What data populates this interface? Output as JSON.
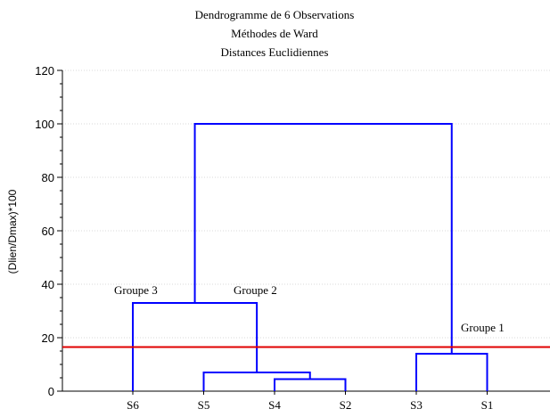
{
  "chart_data": {
    "type": "dendrogram",
    "title_lines": [
      "Dendrogramme de 6 Observations",
      "Méthodes de Ward",
      "Distances Euclidiennes"
    ],
    "xlabel": "",
    "ylabel": "(Dlien/Dmax)*100",
    "ylim": [
      0,
      120
    ],
    "yticks": [
      0,
      20,
      40,
      60,
      80,
      100,
      120
    ],
    "grid": true,
    "leaves": [
      "S6",
      "S5",
      "S4",
      "S2",
      "S3",
      "S1"
    ],
    "merges": [
      {
        "left": "S4",
        "right": "S2",
        "height": 4.5
      },
      {
        "left": "S5",
        "right": "S4+S2",
        "height": 7
      },
      {
        "left": "S6",
        "right": "S5+S4+S2",
        "height": 33
      },
      {
        "left": "S3",
        "right": "S1",
        "height": 14
      },
      {
        "left": "S6+S5+S4+S2",
        "right": "S3+S1",
        "height": 100
      }
    ],
    "cut_line": {
      "value": 16.5,
      "color": "#e00000"
    },
    "link_color": "#0000ff",
    "group_labels": [
      "Groupe 3",
      "Groupe 2",
      "Groupe 1"
    ]
  }
}
